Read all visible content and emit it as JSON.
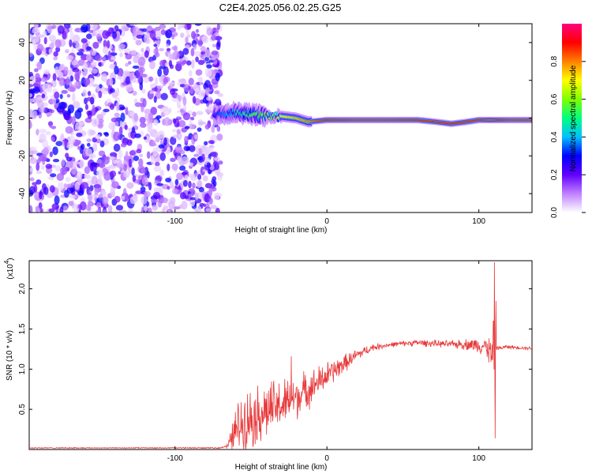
{
  "figure_title": "C2E4.2025.056.02.25.G25",
  "chart_data": [
    {
      "type": "heatmap",
      "title": "",
      "xlabel": "Height of straight line (km)",
      "ylabel": "Frequency (Hz)",
      "xlim": [
        -196,
        135
      ],
      "ylim": [
        -50,
        50
      ],
      "x_ticks": [
        -100,
        0,
        100
      ],
      "x_tick_labels": [
        "-100",
        "0",
        "100"
      ],
      "y_ticks": [
        -40,
        -20,
        0,
        20,
        40
      ],
      "y_tick_labels": [
        "-40",
        "-20",
        "0",
        "20",
        "40"
      ],
      "colorbar": {
        "label": "Normalized spectral amplitude",
        "range": [
          0,
          1
        ],
        "ticks": [
          0.0,
          0.2,
          0.4,
          0.6,
          0.8
        ],
        "tick_labels": [
          "0.0",
          "0.2",
          "0.4",
          "0.6",
          "0.8"
        ],
        "colors": [
          "#ffffff",
          "#c080ff",
          "#6000ff",
          "#0000ff",
          "#00c0ff",
          "#00ff80",
          "#80ff00",
          "#ffff00",
          "#ff8000",
          "#ff0000",
          "#ff0080"
        ]
      },
      "noise_region_x": [
        -196,
        -74
      ],
      "ridge": {
        "x": [
          -74,
          -60,
          -48,
          -40,
          -30,
          -20,
          -12,
          0,
          20,
          40,
          60,
          72,
          82,
          92,
          100,
          108,
          120,
          135
        ],
        "freq": [
          2,
          3,
          2,
          1,
          1,
          0,
          -2,
          -1,
          -1,
          -1,
          -1,
          -2,
          -3,
          -2,
          -1,
          -1,
          -1,
          -1
        ],
        "amplitude": [
          0.3,
          0.45,
          0.55,
          0.6,
          0.7,
          0.75,
          0.8,
          0.9,
          0.95,
          0.95,
          0.92,
          0.9,
          0.9,
          0.9,
          0.92,
          0.85,
          0.95,
          0.95
        ]
      },
      "grid": false
    },
    {
      "type": "line",
      "title": "",
      "xlabel": "Height of straight line (km)",
      "ylabel": "SNR (10 * v/v)",
      "y_multiplier_label": "(x10",
      "y_multiplier_exponent": "4",
      "y_multiplier_close": ")",
      "xlim": [
        -196,
        135
      ],
      "ylim": [
        0,
        2.35
      ],
      "x_ticks": [
        -100,
        0,
        100
      ],
      "x_tick_labels": [
        "-100",
        "0",
        "100"
      ],
      "y_ticks": [
        0.5,
        1.0,
        1.5,
        2.0
      ],
      "y_tick_labels": [
        "0.5",
        "1.0",
        "1.5",
        "2.0"
      ],
      "series": [
        {
          "color": "#e8393a",
          "envelope_x": [
            -196,
            -70,
            -65,
            -60,
            -55,
            -50,
            -40,
            -30,
            -20,
            -10,
            0,
            10,
            20,
            30,
            40,
            50,
            60,
            70,
            80,
            90,
            100,
            105,
            108,
            110,
            111,
            112,
            114,
            118,
            125,
            135
          ],
          "envelope_y": [
            0.02,
            0.02,
            0.05,
            0.25,
            0.35,
            0.4,
            0.48,
            0.55,
            0.65,
            0.78,
            0.92,
            1.05,
            1.18,
            1.27,
            1.3,
            1.32,
            1.33,
            1.32,
            1.31,
            1.31,
            1.3,
            1.28,
            1.2,
            0.95,
            1.3,
            1.27,
            1.26,
            1.28,
            1.27,
            1.26
          ],
          "envelope_noise": [
            0.005,
            0.006,
            0.04,
            0.28,
            0.35,
            0.35,
            0.34,
            0.3,
            0.25,
            0.2,
            0.16,
            0.11,
            0.07,
            0.04,
            0.03,
            0.03,
            0.04,
            0.04,
            0.04,
            0.06,
            0.09,
            0.12,
            0.2,
            0.45,
            0.08,
            0.03,
            0.02,
            0.02,
            0.02,
            0.02
          ],
          "spikes": [
            {
              "x": 110.3,
              "y": 2.33
            },
            {
              "x": 110.8,
              "y": 0.14
            },
            {
              "x": 111.2,
              "y": 1.85
            },
            {
              "x": 109.6,
              "y": 1.6
            },
            {
              "x": -23.5,
              "y": 1.16
            }
          ]
        }
      ],
      "grid": false
    }
  ]
}
